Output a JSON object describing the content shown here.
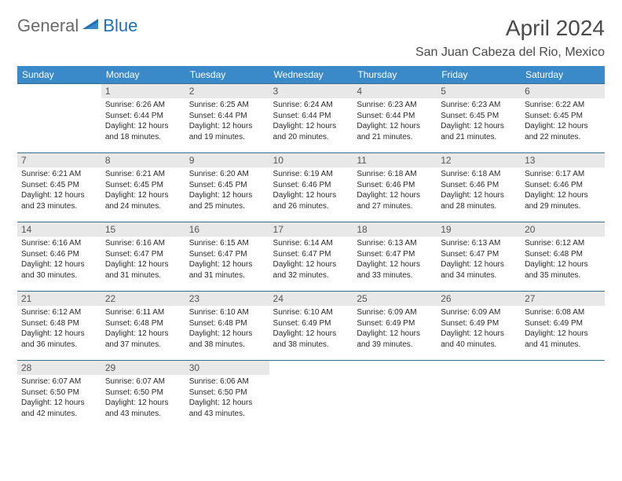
{
  "logo": {
    "text1": "General",
    "text2": "Blue",
    "color1": "#6a6a6a",
    "color2": "#1f6fb2",
    "icon_color": "#1f6fb2"
  },
  "title": "April 2024",
  "location": "San Juan Cabeza del Rio, Mexico",
  "colors": {
    "header_bg": "#3a89c9",
    "header_text": "#ffffff",
    "daynum_bg": "#e8e8e8",
    "daynum_text": "#555555",
    "cell_border": "#3a6a8a",
    "body_text": "#2a2a2a",
    "page_bg": "#ffffff"
  },
  "weekdays": [
    "Sunday",
    "Monday",
    "Tuesday",
    "Wednesday",
    "Thursday",
    "Friday",
    "Saturday"
  ],
  "grid": {
    "leading_blanks": 1,
    "trailing_blanks": 4
  },
  "days": [
    {
      "n": 1,
      "sunrise": "6:26 AM",
      "sunset": "6:44 PM",
      "daylight": "12 hours and 18 minutes."
    },
    {
      "n": 2,
      "sunrise": "6:25 AM",
      "sunset": "6:44 PM",
      "daylight": "12 hours and 19 minutes."
    },
    {
      "n": 3,
      "sunrise": "6:24 AM",
      "sunset": "6:44 PM",
      "daylight": "12 hours and 20 minutes."
    },
    {
      "n": 4,
      "sunrise": "6:23 AM",
      "sunset": "6:44 PM",
      "daylight": "12 hours and 21 minutes."
    },
    {
      "n": 5,
      "sunrise": "6:23 AM",
      "sunset": "6:45 PM",
      "daylight": "12 hours and 21 minutes."
    },
    {
      "n": 6,
      "sunrise": "6:22 AM",
      "sunset": "6:45 PM",
      "daylight": "12 hours and 22 minutes."
    },
    {
      "n": 7,
      "sunrise": "6:21 AM",
      "sunset": "6:45 PM",
      "daylight": "12 hours and 23 minutes."
    },
    {
      "n": 8,
      "sunrise": "6:21 AM",
      "sunset": "6:45 PM",
      "daylight": "12 hours and 24 minutes."
    },
    {
      "n": 9,
      "sunrise": "6:20 AM",
      "sunset": "6:45 PM",
      "daylight": "12 hours and 25 minutes."
    },
    {
      "n": 10,
      "sunrise": "6:19 AM",
      "sunset": "6:46 PM",
      "daylight": "12 hours and 26 minutes."
    },
    {
      "n": 11,
      "sunrise": "6:18 AM",
      "sunset": "6:46 PM",
      "daylight": "12 hours and 27 minutes."
    },
    {
      "n": 12,
      "sunrise": "6:18 AM",
      "sunset": "6:46 PM",
      "daylight": "12 hours and 28 minutes."
    },
    {
      "n": 13,
      "sunrise": "6:17 AM",
      "sunset": "6:46 PM",
      "daylight": "12 hours and 29 minutes."
    },
    {
      "n": 14,
      "sunrise": "6:16 AM",
      "sunset": "6:46 PM",
      "daylight": "12 hours and 30 minutes."
    },
    {
      "n": 15,
      "sunrise": "6:16 AM",
      "sunset": "6:47 PM",
      "daylight": "12 hours and 31 minutes."
    },
    {
      "n": 16,
      "sunrise": "6:15 AM",
      "sunset": "6:47 PM",
      "daylight": "12 hours and 31 minutes."
    },
    {
      "n": 17,
      "sunrise": "6:14 AM",
      "sunset": "6:47 PM",
      "daylight": "12 hours and 32 minutes."
    },
    {
      "n": 18,
      "sunrise": "6:13 AM",
      "sunset": "6:47 PM",
      "daylight": "12 hours and 33 minutes."
    },
    {
      "n": 19,
      "sunrise": "6:13 AM",
      "sunset": "6:47 PM",
      "daylight": "12 hours and 34 minutes."
    },
    {
      "n": 20,
      "sunrise": "6:12 AM",
      "sunset": "6:48 PM",
      "daylight": "12 hours and 35 minutes."
    },
    {
      "n": 21,
      "sunrise": "6:12 AM",
      "sunset": "6:48 PM",
      "daylight": "12 hours and 36 minutes."
    },
    {
      "n": 22,
      "sunrise": "6:11 AM",
      "sunset": "6:48 PM",
      "daylight": "12 hours and 37 minutes."
    },
    {
      "n": 23,
      "sunrise": "6:10 AM",
      "sunset": "6:48 PM",
      "daylight": "12 hours and 38 minutes."
    },
    {
      "n": 24,
      "sunrise": "6:10 AM",
      "sunset": "6:49 PM",
      "daylight": "12 hours and 38 minutes."
    },
    {
      "n": 25,
      "sunrise": "6:09 AM",
      "sunset": "6:49 PM",
      "daylight": "12 hours and 39 minutes."
    },
    {
      "n": 26,
      "sunrise": "6:09 AM",
      "sunset": "6:49 PM",
      "daylight": "12 hours and 40 minutes."
    },
    {
      "n": 27,
      "sunrise": "6:08 AM",
      "sunset": "6:49 PM",
      "daylight": "12 hours and 41 minutes."
    },
    {
      "n": 28,
      "sunrise": "6:07 AM",
      "sunset": "6:50 PM",
      "daylight": "12 hours and 42 minutes."
    },
    {
      "n": 29,
      "sunrise": "6:07 AM",
      "sunset": "6:50 PM",
      "daylight": "12 hours and 43 minutes."
    },
    {
      "n": 30,
      "sunrise": "6:06 AM",
      "sunset": "6:50 PM",
      "daylight": "12 hours and 43 minutes."
    }
  ],
  "labels": {
    "sunrise": "Sunrise:",
    "sunset": "Sunset:",
    "daylight": "Daylight:"
  }
}
